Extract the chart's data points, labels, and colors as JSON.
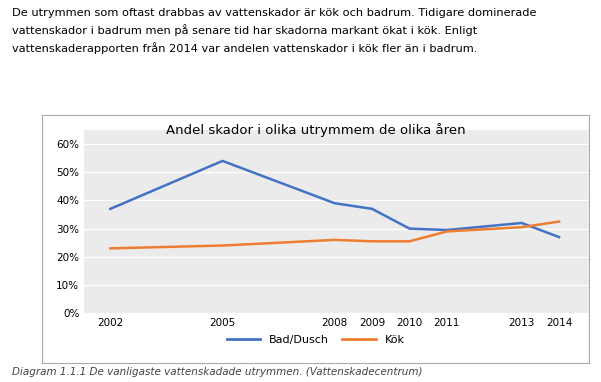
{
  "title": "Andel skador i olika utrymmem de olika åren",
  "years": [
    2002,
    2005,
    2008,
    2009,
    2010,
    2011,
    2013,
    2014
  ],
  "bad_dusch": [
    0.37,
    0.54,
    0.39,
    0.37,
    0.3,
    0.295,
    0.32,
    0.27
  ],
  "kok": [
    0.23,
    0.24,
    0.26,
    0.255,
    0.255,
    0.29,
    0.305,
    0.325
  ],
  "bad_color": "#4472C4",
  "kok_color": "#ED7D31",
  "background_chart": "#EBEBEB",
  "background_box": "#FFFFFF",
  "ylim": [
    0.0,
    0.65
  ],
  "yticks": [
    0.0,
    0.1,
    0.2,
    0.3,
    0.4,
    0.5,
    0.6
  ],
  "legend_labels": [
    "Bad/Dusch",
    "Kök"
  ],
  "caption": "Diagram 1.1.1 De vanligaste vattenskadade utrymmen. (Vattenskadecentrum)",
  "header_text": "De utrymmen som oftast drabbas av vattenskador är kök och badrum. Tidigare dominerade vattenskador i badrum men på senare tid har skadorna markant ökat i kök. Enligt vattenskaderapporten från 2014 var andelen vattenskador i kök fler än i badrum."
}
